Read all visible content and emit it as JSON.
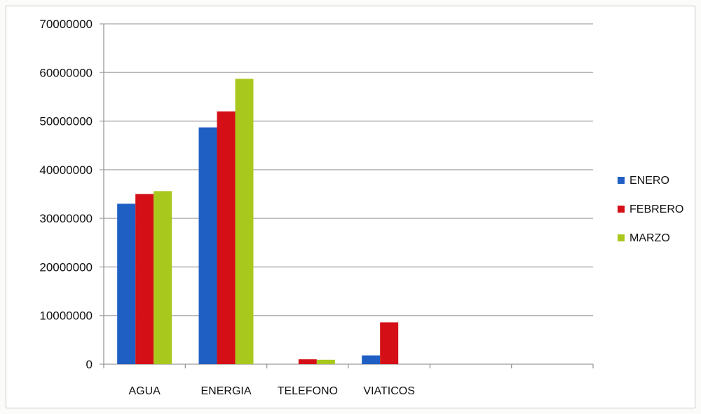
{
  "chart_data": {
    "type": "bar",
    "categories": [
      "AGUA",
      "ENERGIA",
      "TELEFONO",
      "VIATICOS",
      "",
      ""
    ],
    "series": [
      {
        "name": "ENERO",
        "color": "#1f5fc4",
        "values": [
          33000000,
          48700000,
          0,
          1800000,
          null,
          null
        ]
      },
      {
        "name": "FEBRERO",
        "color": "#d40f16",
        "values": [
          35000000,
          52000000,
          1000000,
          8600000,
          null,
          null
        ]
      },
      {
        "name": "MARZO",
        "color": "#a8c81e",
        "values": [
          35600000,
          58700000,
          900000,
          0,
          null,
          null
        ]
      }
    ],
    "ylim": [
      0,
      70000000
    ],
    "yticks": [
      "0",
      "10000000",
      "20000000",
      "30000000",
      "40000000",
      "50000000",
      "60000000",
      "70000000"
    ],
    "grid": true,
    "legend": "right"
  }
}
